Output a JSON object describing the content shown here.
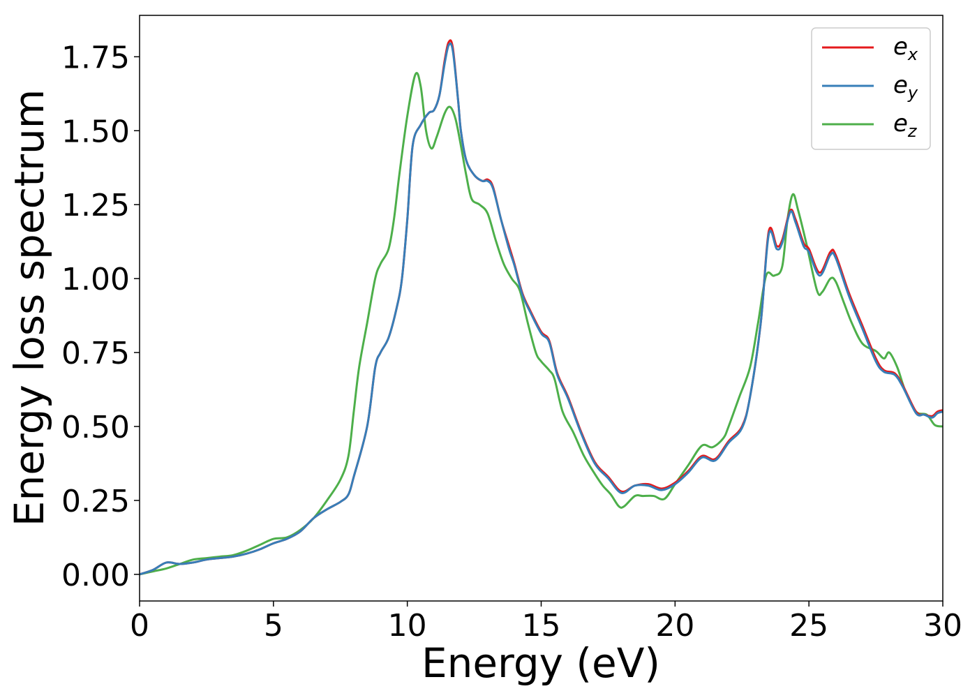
{
  "chart_data": {
    "type": "line",
    "xlabel": "Energy (eV)",
    "ylabel": "Energy loss spectrum",
    "xlim": [
      0,
      30
    ],
    "ylim": [
      -0.09,
      1.89
    ],
    "xticks": [
      0,
      5,
      10,
      15,
      20,
      25,
      30
    ],
    "yticks": [
      0.0,
      0.25,
      0.5,
      0.75,
      1.0,
      1.25,
      1.5,
      1.75
    ],
    "xtick_labels": [
      "0",
      "5",
      "10",
      "15",
      "20",
      "25",
      "30"
    ],
    "ytick_labels": [
      "0.00",
      "0.25",
      "0.50",
      "0.75",
      "1.00",
      "1.25",
      "1.50",
      "1.75"
    ],
    "grid": false,
    "legend_position": "top-right",
    "series": [
      {
        "name": "e_x",
        "base": "e",
        "sub": "x",
        "color": "#e41a1c",
        "points": [
          [
            0,
            0
          ],
          [
            0.5,
            0.015
          ],
          [
            1,
            0.04
          ],
          [
            1.5,
            0.035
          ],
          [
            2,
            0.04
          ],
          [
            2.5,
            0.05
          ],
          [
            3,
            0.055
          ],
          [
            3.5,
            0.06
          ],
          [
            4,
            0.07
          ],
          [
            4.5,
            0.085
          ],
          [
            5,
            0.105
          ],
          [
            5.5,
            0.12
          ],
          [
            6,
            0.145
          ],
          [
            6.5,
            0.19
          ],
          [
            7,
            0.22
          ],
          [
            7.5,
            0.245
          ],
          [
            7.8,
            0.27
          ],
          [
            8,
            0.33
          ],
          [
            8.5,
            0.5
          ],
          [
            8.8,
            0.7
          ],
          [
            9,
            0.75
          ],
          [
            9.3,
            0.8
          ],
          [
            9.6,
            0.9
          ],
          [
            9.8,
            1.0
          ],
          [
            10,
            1.2
          ],
          [
            10.2,
            1.45
          ],
          [
            10.5,
            1.52
          ],
          [
            10.8,
            1.56
          ],
          [
            11,
            1.57
          ],
          [
            11.2,
            1.62
          ],
          [
            11.4,
            1.74
          ],
          [
            11.55,
            1.8
          ],
          [
            11.7,
            1.78
          ],
          [
            11.9,
            1.6
          ],
          [
            12,
            1.5
          ],
          [
            12.2,
            1.4
          ],
          [
            12.5,
            1.35
          ],
          [
            12.8,
            1.33
          ],
          [
            13,
            1.335
          ],
          [
            13.2,
            1.31
          ],
          [
            13.5,
            1.2
          ],
          [
            13.8,
            1.11
          ],
          [
            14,
            1.05
          ],
          [
            14.3,
            0.95
          ],
          [
            14.6,
            0.89
          ],
          [
            15,
            0.82
          ],
          [
            15.3,
            0.79
          ],
          [
            15.6,
            0.68
          ],
          [
            16,
            0.6
          ],
          [
            16.5,
            0.48
          ],
          [
            17,
            0.38
          ],
          [
            17.5,
            0.33
          ],
          [
            18,
            0.28
          ],
          [
            18.5,
            0.3
          ],
          [
            19,
            0.305
          ],
          [
            19.5,
            0.29
          ],
          [
            20,
            0.31
          ],
          [
            20.5,
            0.35
          ],
          [
            21,
            0.4
          ],
          [
            21.5,
            0.39
          ],
          [
            22,
            0.45
          ],
          [
            22.5,
            0.5
          ],
          [
            22.8,
            0.6
          ],
          [
            23.2,
            0.85
          ],
          [
            23.5,
            1.16
          ],
          [
            23.8,
            1.11
          ],
          [
            24,
            1.13
          ],
          [
            24.3,
            1.23
          ],
          [
            24.5,
            1.2
          ],
          [
            24.8,
            1.12
          ],
          [
            25,
            1.1
          ],
          [
            25.4,
            1.02
          ],
          [
            25.8,
            1.09
          ],
          [
            26,
            1.08
          ],
          [
            26.5,
            0.95
          ],
          [
            27,
            0.84
          ],
          [
            27.5,
            0.73
          ],
          [
            27.8,
            0.69
          ],
          [
            28.2,
            0.68
          ],
          [
            28.5,
            0.64
          ],
          [
            29,
            0.55
          ],
          [
            29.3,
            0.54
          ],
          [
            29.6,
            0.535
          ],
          [
            29.8,
            0.55
          ],
          [
            30,
            0.555
          ]
        ]
      },
      {
        "name": "e_y",
        "base": "e",
        "sub": "y",
        "color": "#377eb8",
        "points": [
          [
            0,
            0
          ],
          [
            0.5,
            0.015
          ],
          [
            1,
            0.04
          ],
          [
            1.5,
            0.035
          ],
          [
            2,
            0.04
          ],
          [
            2.5,
            0.05
          ],
          [
            3,
            0.055
          ],
          [
            3.5,
            0.06
          ],
          [
            4,
            0.07
          ],
          [
            4.5,
            0.085
          ],
          [
            5,
            0.105
          ],
          [
            5.5,
            0.12
          ],
          [
            6,
            0.145
          ],
          [
            6.5,
            0.19
          ],
          [
            7,
            0.22
          ],
          [
            7.5,
            0.245
          ],
          [
            7.8,
            0.27
          ],
          [
            8,
            0.33
          ],
          [
            8.5,
            0.5
          ],
          [
            8.8,
            0.7
          ],
          [
            9,
            0.75
          ],
          [
            9.3,
            0.8
          ],
          [
            9.6,
            0.9
          ],
          [
            9.8,
            1.0
          ],
          [
            10,
            1.2
          ],
          [
            10.2,
            1.45
          ],
          [
            10.5,
            1.52
          ],
          [
            10.8,
            1.56
          ],
          [
            11,
            1.57
          ],
          [
            11.2,
            1.62
          ],
          [
            11.4,
            1.73
          ],
          [
            11.55,
            1.79
          ],
          [
            11.7,
            1.77
          ],
          [
            11.9,
            1.6
          ],
          [
            12,
            1.5
          ],
          [
            12.2,
            1.4
          ],
          [
            12.5,
            1.35
          ],
          [
            12.8,
            1.33
          ],
          [
            13,
            1.33
          ],
          [
            13.2,
            1.305
          ],
          [
            13.5,
            1.2
          ],
          [
            13.8,
            1.1
          ],
          [
            14,
            1.045
          ],
          [
            14.3,
            0.945
          ],
          [
            14.6,
            0.885
          ],
          [
            15,
            0.815
          ],
          [
            15.3,
            0.785
          ],
          [
            15.6,
            0.675
          ],
          [
            16,
            0.595
          ],
          [
            16.5,
            0.475
          ],
          [
            17,
            0.375
          ],
          [
            17.5,
            0.325
          ],
          [
            18,
            0.275
          ],
          [
            18.5,
            0.3
          ],
          [
            19,
            0.3
          ],
          [
            19.5,
            0.285
          ],
          [
            20,
            0.305
          ],
          [
            20.5,
            0.345
          ],
          [
            21,
            0.395
          ],
          [
            21.5,
            0.385
          ],
          [
            22,
            0.445
          ],
          [
            22.5,
            0.495
          ],
          [
            22.8,
            0.6
          ],
          [
            23.2,
            0.85
          ],
          [
            23.5,
            1.15
          ],
          [
            23.8,
            1.1
          ],
          [
            24,
            1.12
          ],
          [
            24.3,
            1.225
          ],
          [
            24.5,
            1.19
          ],
          [
            24.8,
            1.11
          ],
          [
            25,
            1.09
          ],
          [
            25.4,
            1.01
          ],
          [
            25.8,
            1.08
          ],
          [
            26,
            1.07
          ],
          [
            26.5,
            0.94
          ],
          [
            27,
            0.83
          ],
          [
            27.5,
            0.72
          ],
          [
            27.8,
            0.685
          ],
          [
            28.2,
            0.675
          ],
          [
            28.5,
            0.635
          ],
          [
            29,
            0.545
          ],
          [
            29.3,
            0.54
          ],
          [
            29.6,
            0.53
          ],
          [
            29.8,
            0.545
          ],
          [
            30,
            0.55
          ]
        ]
      },
      {
        "name": "e_z",
        "base": "e",
        "sub": "z",
        "color": "#4daf4a",
        "points": [
          [
            0,
            0
          ],
          [
            0.5,
            0.01
          ],
          [
            1,
            0.02
          ],
          [
            1.5,
            0.035
          ],
          [
            2,
            0.05
          ],
          [
            2.5,
            0.055
          ],
          [
            3,
            0.06
          ],
          [
            3.5,
            0.065
          ],
          [
            4,
            0.08
          ],
          [
            4.5,
            0.1
          ],
          [
            5,
            0.12
          ],
          [
            5.5,
            0.125
          ],
          [
            6,
            0.15
          ],
          [
            6.5,
            0.19
          ],
          [
            7,
            0.25
          ],
          [
            7.5,
            0.32
          ],
          [
            7.8,
            0.4
          ],
          [
            8,
            0.55
          ],
          [
            8.2,
            0.7
          ],
          [
            8.5,
            0.85
          ],
          [
            8.8,
            1.0
          ],
          [
            9,
            1.05
          ],
          [
            9.3,
            1.1
          ],
          [
            9.5,
            1.2
          ],
          [
            9.7,
            1.35
          ],
          [
            10,
            1.55
          ],
          [
            10.3,
            1.69
          ],
          [
            10.5,
            1.65
          ],
          [
            10.7,
            1.5
          ],
          [
            10.9,
            1.44
          ],
          [
            11.1,
            1.48
          ],
          [
            11.4,
            1.56
          ],
          [
            11.6,
            1.58
          ],
          [
            11.8,
            1.54
          ],
          [
            12,
            1.45
          ],
          [
            12.2,
            1.35
          ],
          [
            12.4,
            1.27
          ],
          [
            12.7,
            1.25
          ],
          [
            13,
            1.22
          ],
          [
            13.3,
            1.13
          ],
          [
            13.6,
            1.05
          ],
          [
            13.9,
            1.0
          ],
          [
            14.2,
            0.96
          ],
          [
            14.5,
            0.85
          ],
          [
            14.8,
            0.75
          ],
          [
            15,
            0.72
          ],
          [
            15.3,
            0.69
          ],
          [
            15.5,
            0.66
          ],
          [
            15.8,
            0.55
          ],
          [
            16.2,
            0.48
          ],
          [
            16.6,
            0.4
          ],
          [
            17,
            0.34
          ],
          [
            17.3,
            0.3
          ],
          [
            17.6,
            0.27
          ],
          [
            17.9,
            0.23
          ],
          [
            18.1,
            0.23
          ],
          [
            18.5,
            0.265
          ],
          [
            18.8,
            0.265
          ],
          [
            19.2,
            0.265
          ],
          [
            19.6,
            0.255
          ],
          [
            20,
            0.305
          ],
          [
            20.5,
            0.37
          ],
          [
            21,
            0.435
          ],
          [
            21.4,
            0.43
          ],
          [
            21.8,
            0.46
          ],
          [
            22,
            0.5
          ],
          [
            22.4,
            0.6
          ],
          [
            22.8,
            0.7
          ],
          [
            23.1,
            0.85
          ],
          [
            23.4,
            1.01
          ],
          [
            23.7,
            1.01
          ],
          [
            24,
            1.04
          ],
          [
            24.2,
            1.2
          ],
          [
            24.4,
            1.285
          ],
          [
            24.6,
            1.23
          ],
          [
            24.9,
            1.12
          ],
          [
            25.3,
            0.96
          ],
          [
            25.5,
            0.955
          ],
          [
            25.8,
            1.0
          ],
          [
            26,
            0.99
          ],
          [
            26.3,
            0.92
          ],
          [
            26.6,
            0.85
          ],
          [
            27,
            0.78
          ],
          [
            27.5,
            0.755
          ],
          [
            27.8,
            0.73
          ],
          [
            28,
            0.75
          ],
          [
            28.3,
            0.7
          ],
          [
            28.6,
            0.62
          ],
          [
            29,
            0.55
          ],
          [
            29.4,
            0.54
          ],
          [
            29.7,
            0.505
          ],
          [
            30,
            0.5
          ]
        ]
      }
    ]
  }
}
